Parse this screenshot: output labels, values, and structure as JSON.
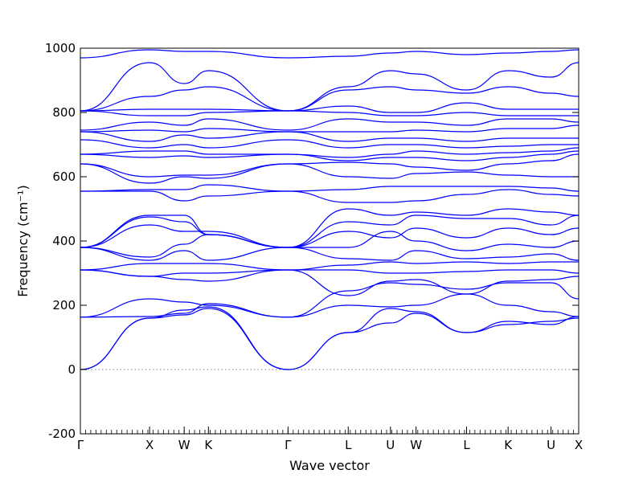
{
  "chart_data": {
    "type": "line",
    "title": "",
    "xlabel": "Wave vector",
    "ylabel": "Frequency (cm⁻¹)",
    "ylim": [
      -200,
      1000
    ],
    "yticks": [
      -200,
      0,
      200,
      400,
      600,
      800,
      1000
    ],
    "grid": false,
    "legend": "none",
    "line_color": "#0000ff",
    "zero_line": {
      "y": 0,
      "style": "dotted",
      "color": "#7f7faa"
    },
    "kpath_labels": [
      "Γ",
      "X",
      "W",
      "K",
      "Γ",
      "L",
      "U",
      "W",
      "L",
      "K",
      "U",
      "X"
    ],
    "kpath_x": [
      0.0,
      1.0,
      1.5,
      1.85,
      3.0,
      3.87,
      4.48,
      4.85,
      5.58,
      6.18,
      6.8,
      7.2
    ],
    "x_range": [
      0.0,
      7.2
    ],
    "series": [
      {
        "x": [
          0,
          1,
          1.5,
          1.85,
          3,
          3.87,
          4.48,
          4.85,
          5.58,
          6.18,
          6.8,
          7.2
        ],
        "values": [
          0,
          160,
          170,
          190,
          0,
          115,
          145,
          175,
          115,
          150,
          140,
          165
        ]
      },
      {
        "x": [
          0,
          1,
          1.5,
          1.85,
          3,
          3.87,
          4.48,
          4.85,
          5.58,
          6.18,
          6.8,
          7.2
        ],
        "values": [
          0,
          160,
          185,
          195,
          0,
          115,
          190,
          180,
          115,
          140,
          150,
          160
        ]
      },
      {
        "x": [
          0,
          1,
          1.5,
          1.85,
          3,
          3.87,
          4.48,
          4.85,
          5.58,
          6.18,
          6.8,
          7.2
        ],
        "values": [
          163,
          165,
          175,
          205,
          163,
          200,
          195,
          200,
          235,
          200,
          180,
          165
        ]
      },
      {
        "x": [
          0,
          1,
          1.5,
          1.85,
          3,
          3.87,
          4.48,
          4.85,
          5.58,
          6.18,
          6.8,
          7.2
        ],
        "values": [
          163,
          220,
          210,
          200,
          163,
          245,
          270,
          265,
          250,
          270,
          270,
          220
        ]
      },
      {
        "x": [
          0,
          1,
          1.5,
          1.85,
          3,
          3.87,
          4.48,
          4.85,
          5.58,
          6.18,
          6.8,
          7.2
        ],
        "values": [
          310,
          290,
          280,
          275,
          310,
          230,
          275,
          280,
          235,
          275,
          280,
          290
        ]
      },
      {
        "x": [
          0,
          1,
          1.5,
          1.85,
          3,
          3.87,
          4.48,
          4.85,
          5.58,
          6.18,
          6.8,
          7.2
        ],
        "values": [
          310,
          290,
          300,
          300,
          310,
          310,
          300,
          300,
          305,
          310,
          310,
          300
        ]
      },
      {
        "x": [
          0,
          1,
          1.5,
          1.85,
          3,
          3.87,
          4.48,
          4.85,
          5.58,
          6.18,
          6.8,
          7.2
        ],
        "values": [
          310,
          330,
          330,
          330,
          310,
          325,
          335,
          330,
          335,
          330,
          335,
          335
        ]
      },
      {
        "x": [
          0,
          1,
          1.5,
          1.85,
          3,
          3.87,
          4.48,
          4.85,
          5.58,
          6.18,
          6.8,
          7.2
        ],
        "values": [
          380,
          340,
          370,
          340,
          380,
          345,
          340,
          370,
          345,
          350,
          360,
          340
        ]
      },
      {
        "x": [
          0,
          1,
          1.5,
          1.85,
          3,
          3.87,
          4.48,
          4.85,
          5.58,
          6.18,
          6.8,
          7.2
        ],
        "values": [
          380,
          350,
          390,
          420,
          380,
          380,
          430,
          400,
          370,
          390,
          380,
          400
        ]
      },
      {
        "x": [
          0,
          1,
          1.5,
          1.85,
          3,
          3.87,
          4.48,
          4.85,
          5.58,
          6.18,
          6.8,
          7.2
        ],
        "values": [
          380,
          450,
          430,
          430,
          380,
          430,
          410,
          440,
          410,
          440,
          420,
          440
        ]
      },
      {
        "x": [
          0,
          1,
          1.5,
          1.85,
          3,
          3.87,
          4.48,
          4.85,
          5.58,
          6.18,
          6.8,
          7.2
        ],
        "values": [
          380,
          475,
          460,
          420,
          380,
          460,
          450,
          480,
          470,
          470,
          450,
          480
        ]
      },
      {
        "x": [
          0,
          1,
          1.5,
          1.85,
          3,
          3.87,
          4.48,
          4.85,
          5.58,
          6.18,
          6.8,
          7.2
        ],
        "values": [
          380,
          480,
          480,
          420,
          380,
          500,
          480,
          490,
          480,
          500,
          490,
          480
        ]
      },
      {
        "x": [
          0,
          1,
          1.5,
          1.85,
          3,
          3.87,
          4.48,
          4.85,
          5.58,
          6.18,
          6.8,
          7.2
        ],
        "values": [
          555,
          555,
          525,
          540,
          555,
          520,
          520,
          525,
          545,
          560,
          545,
          540
        ]
      },
      {
        "x": [
          0,
          1,
          1.5,
          1.85,
          3,
          3.87,
          4.48,
          4.85,
          5.58,
          6.18,
          6.8,
          7.2
        ],
        "values": [
          555,
          560,
          560,
          575,
          555,
          560,
          570,
          570,
          570,
          570,
          565,
          555
        ]
      },
      {
        "x": [
          0,
          1,
          1.5,
          1.85,
          3,
          3.87,
          4.48,
          4.85,
          5.58,
          6.18,
          6.8,
          7.2
        ],
        "values": [
          640,
          580,
          600,
          595,
          640,
          600,
          595,
          610,
          615,
          605,
          600,
          600
        ]
      },
      {
        "x": [
          0,
          1,
          1.5,
          1.85,
          3,
          3.87,
          4.48,
          4.85,
          5.58,
          6.18,
          6.8,
          7.2
        ],
        "values": [
          640,
          600,
          605,
          605,
          640,
          645,
          640,
          630,
          620,
          640,
          650,
          670
        ]
      },
      {
        "x": [
          0,
          1,
          1.5,
          1.85,
          3,
          3.87,
          4.48,
          4.85,
          5.58,
          6.18,
          6.8,
          7.2
        ],
        "values": [
          670,
          660,
          665,
          660,
          670,
          650,
          660,
          660,
          650,
          660,
          670,
          680
        ]
      },
      {
        "x": [
          0,
          1,
          1.5,
          1.85,
          3,
          3.87,
          4.48,
          4.85,
          5.58,
          6.18,
          6.8,
          7.2
        ],
        "values": [
          670,
          680,
          680,
          670,
          670,
          660,
          670,
          680,
          670,
          675,
          680,
          690
        ]
      },
      {
        "x": [
          0,
          1,
          1.5,
          1.85,
          3,
          3.87,
          4.48,
          4.85,
          5.58,
          6.18,
          6.8,
          7.2
        ],
        "values": [
          715,
          690,
          700,
          690,
          715,
          690,
          700,
          700,
          690,
          695,
          700,
          700
        ]
      },
      {
        "x": [
          0,
          1,
          1.5,
          1.85,
          3,
          3.87,
          4.48,
          4.85,
          5.58,
          6.18,
          6.8,
          7.2
        ],
        "values": [
          740,
          710,
          730,
          720,
          740,
          710,
          720,
          720,
          710,
          720,
          720,
          720
        ]
      },
      {
        "x": [
          0,
          1,
          1.5,
          1.85,
          3,
          3.87,
          4.48,
          4.85,
          5.58,
          6.18,
          6.8,
          7.2
        ],
        "values": [
          740,
          745,
          740,
          750,
          740,
          740,
          740,
          745,
          740,
          750,
          750,
          760
        ]
      },
      {
        "x": [
          0,
          1,
          1.5,
          1.85,
          3,
          3.87,
          4.48,
          4.85,
          5.58,
          6.18,
          6.8,
          7.2
        ],
        "values": [
          745,
          770,
          760,
          780,
          745,
          780,
          770,
          770,
          760,
          780,
          780,
          770
        ]
      },
      {
        "x": [
          0,
          1,
          1.5,
          1.85,
          3,
          3.87,
          4.48,
          4.85,
          5.58,
          6.18,
          6.8,
          7.2
        ],
        "values": [
          805,
          790,
          790,
          800,
          805,
          800,
          790,
          790,
          800,
          790,
          790,
          790
        ]
      },
      {
        "x": [
          0,
          1,
          1.5,
          1.85,
          3,
          3.87,
          4.48,
          4.85,
          5.58,
          6.18,
          6.8,
          7.2
        ],
        "values": [
          805,
          810,
          810,
          810,
          805,
          820,
          800,
          800,
          830,
          810,
          810,
          810
        ]
      },
      {
        "x": [
          0,
          1,
          1.5,
          1.85,
          3,
          3.87,
          4.48,
          4.85,
          5.58,
          6.18,
          6.8,
          7.2
        ],
        "values": [
          805,
          850,
          870,
          880,
          805,
          870,
          880,
          870,
          860,
          880,
          860,
          850
        ]
      },
      {
        "x": [
          0,
          1,
          1.5,
          1.85,
          3,
          3.87,
          4.48,
          4.85,
          5.58,
          6.18,
          6.8,
          7.2
        ],
        "values": [
          805,
          955,
          890,
          930,
          805,
          880,
          930,
          920,
          870,
          930,
          910,
          955
        ]
      },
      {
        "x": [
          0,
          1,
          1.5,
          1.85,
          3,
          3.87,
          4.48,
          4.85,
          5.58,
          6.18,
          6.8,
          7.2
        ],
        "values": [
          970,
          995,
          990,
          990,
          970,
          975,
          985,
          990,
          980,
          985,
          990,
          995
        ]
      }
    ]
  }
}
